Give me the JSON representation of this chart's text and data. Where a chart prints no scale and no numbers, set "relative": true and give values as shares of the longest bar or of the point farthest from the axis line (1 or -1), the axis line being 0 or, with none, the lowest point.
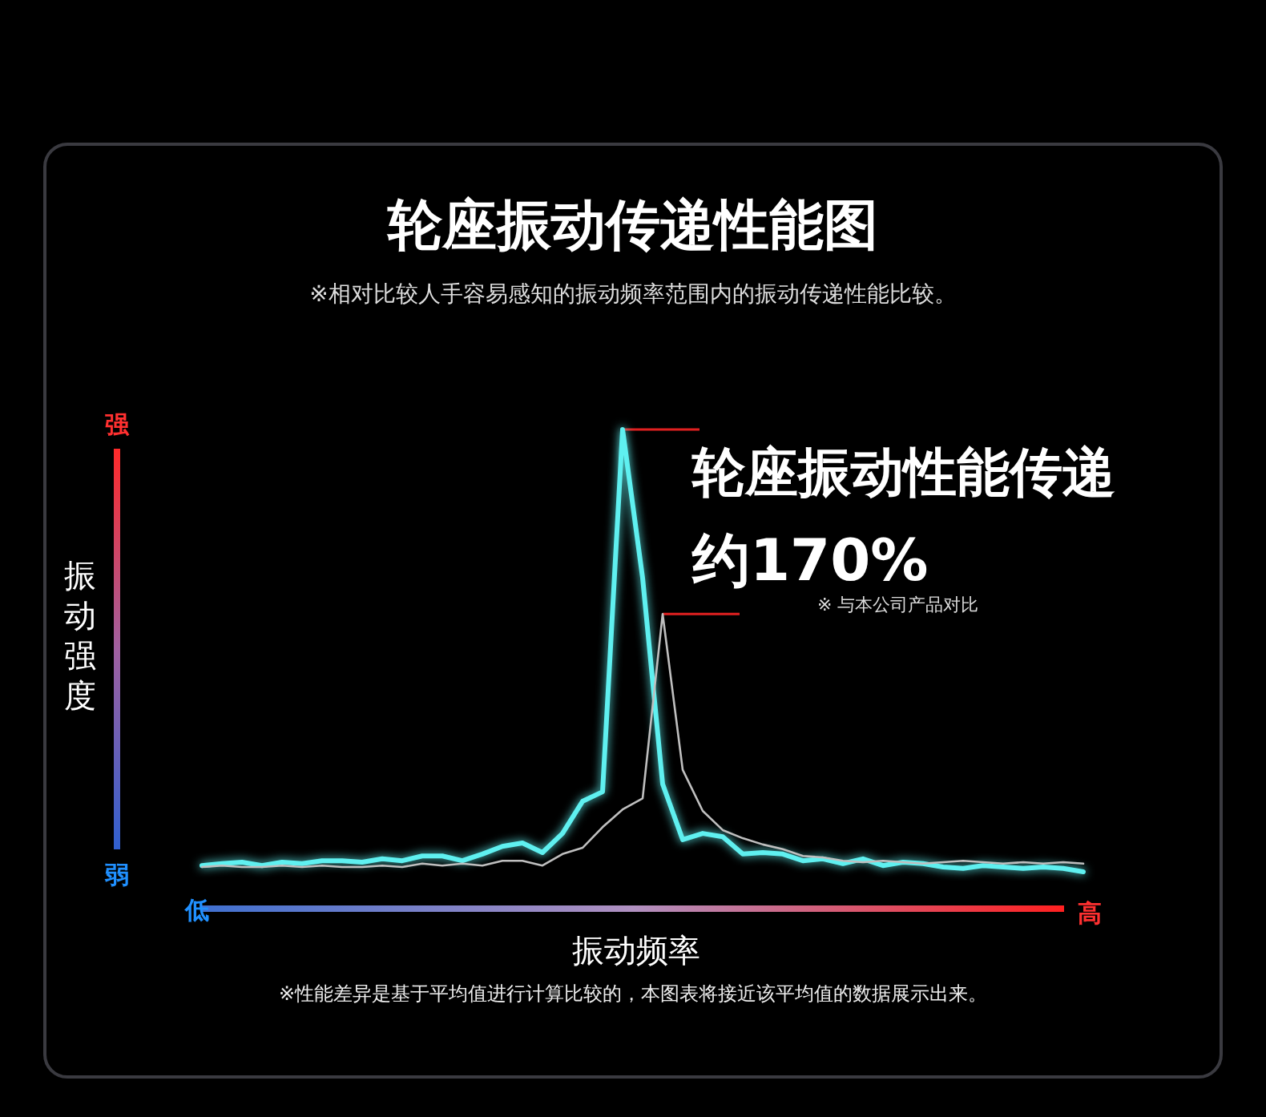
{
  "chart_data": {
    "type": "line",
    "relative": true,
    "title": "轮座振动传递性能图",
    "subtitle": "※相对比较人手容易感知的振动频率范围内的振动传递性能比较。",
    "xlabel": "振动频率",
    "ylabel": "振动强度",
    "categories": [
      null,
      null,
      null,
      null,
      null,
      null,
      null,
      null,
      null,
      null,
      null,
      null,
      null,
      null,
      null,
      null,
      null,
      null,
      null,
      null,
      null,
      null,
      null,
      null,
      null,
      null,
      null,
      null,
      null,
      null,
      null,
      null,
      null,
      null,
      null,
      null,
      null,
      null,
      null,
      null,
      null,
      null,
      null,
      null,
      null
    ],
    "series": [
      {
        "color": "#5ff0f0",
        "values": [
          0.09,
          0.094,
          0.097,
          0.09,
          0.097,
          0.094,
          0.1,
          0.1,
          0.097,
          0.104,
          0.1,
          0.11,
          0.11,
          0.1,
          0.114,
          0.13,
          0.137,
          0.117,
          0.157,
          0.224,
          0.244,
          1.0,
          0.69,
          0.26,
          0.144,
          0.157,
          0.15,
          0.114,
          0.117,
          0.114,
          0.1,
          0.104,
          0.094,
          0.104,
          0.09,
          0.097,
          0.094,
          0.087,
          0.084,
          0.09,
          0.087,
          0.084,
          0.087,
          0.084,
          0.077
        ]
      },
      {
        "color": "#bfbfbf",
        "values": [
          0.087,
          0.09,
          0.087,
          0.087,
          0.09,
          0.087,
          0.09,
          0.087,
          0.087,
          0.09,
          0.087,
          0.094,
          0.09,
          0.094,
          0.09,
          0.1,
          0.1,
          0.09,
          0.114,
          0.127,
          0.17,
          0.207,
          0.23,
          0.615,
          0.29,
          0.204,
          0.164,
          0.147,
          0.134,
          0.124,
          0.11,
          0.107,
          0.1,
          0.097,
          0.1,
          0.097,
          0.094,
          0.097,
          0.1,
          0.097,
          0.094,
          0.097,
          0.094,
          0.097,
          0.094
        ]
      }
    ],
    "ref_lines": [
      {
        "axis": "y",
        "value": 1.0,
        "color": "#e02020"
      },
      {
        "axis": "y",
        "value": 0.615,
        "color": "#e02020"
      }
    ],
    "annotations": [
      "强",
      "弱",
      "低",
      "高",
      "轮座振动性能传递",
      "约170%",
      "※ 与本公司产品对比",
      "※性能差异是基于平均值进行计算比较的，本图表将接近该平均值的数据展示出来。"
    ]
  }
}
